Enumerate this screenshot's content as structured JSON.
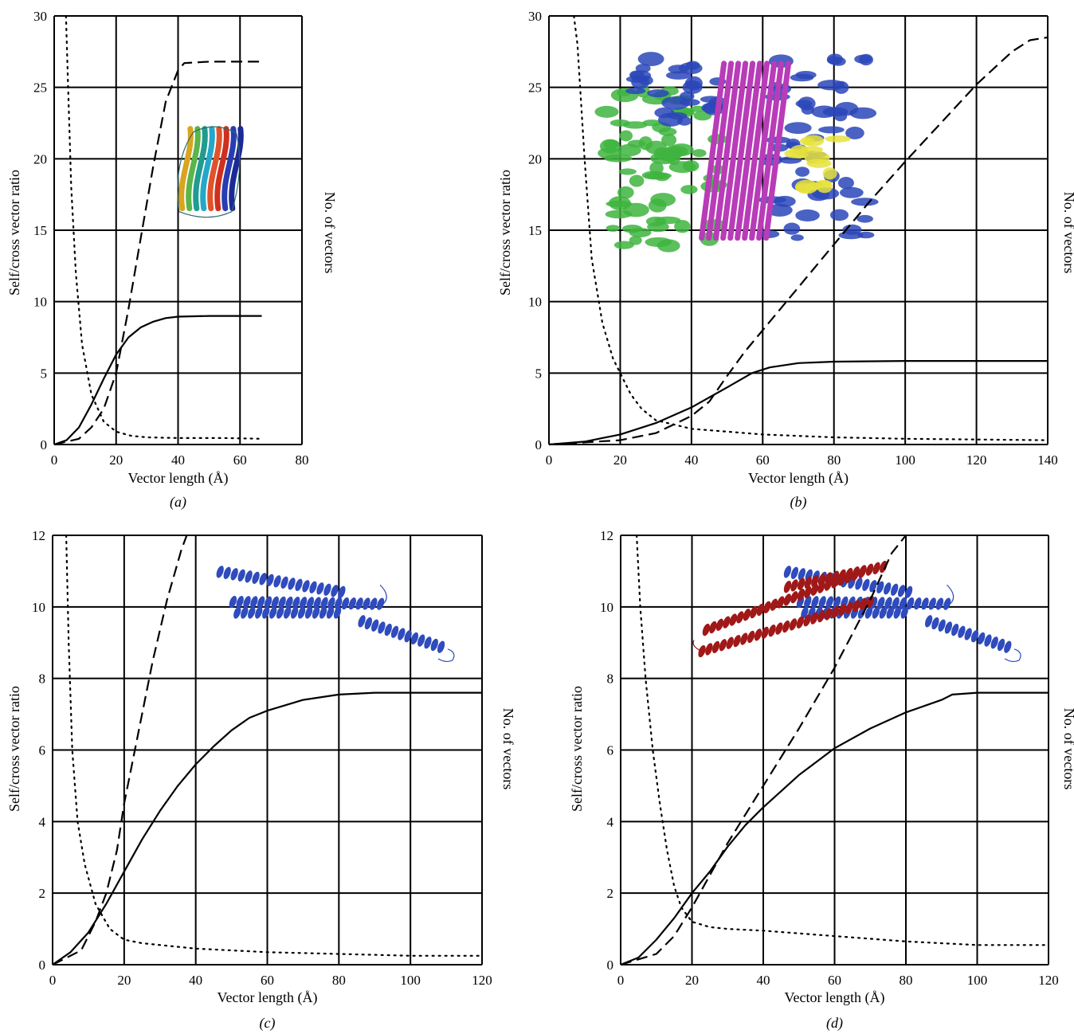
{
  "chart_data": [
    {
      "type": "line",
      "panel_label": "(a)",
      "xlabel": "Vector length (Å)",
      "ylabel": "Self/cross vector ratio",
      "y2label": "No. of vectors",
      "xlim": [
        0,
        80
      ],
      "ylim": [
        0,
        30
      ],
      "xticks": [
        0,
        20,
        40,
        60,
        80
      ],
      "yticks": [
        0,
        5,
        10,
        15,
        20,
        25,
        30
      ],
      "grid": true,
      "inset": "beta-sandwich",
      "series": [
        {
          "style": "solid",
          "points": [
            [
              0,
              0
            ],
            [
              4,
              0.3
            ],
            [
              8,
              1.2
            ],
            [
              12,
              2.8
            ],
            [
              16,
              4.6
            ],
            [
              20,
              6.3
            ],
            [
              24,
              7.5
            ],
            [
              28,
              8.2
            ],
            [
              32,
              8.6
            ],
            [
              36,
              8.85
            ],
            [
              40,
              8.95
            ],
            [
              50,
              9.0
            ],
            [
              67,
              9.0
            ]
          ]
        },
        {
          "style": "dashed",
          "points": [
            [
              0,
              0
            ],
            [
              8,
              0.4
            ],
            [
              12,
              1.2
            ],
            [
              16,
              2.5
            ],
            [
              20,
              5.0
            ],
            [
              24,
              9.5
            ],
            [
              28,
              14.5
            ],
            [
              32,
              19.5
            ],
            [
              36,
              24.0
            ],
            [
              40,
              26.2
            ],
            [
              42,
              26.7
            ],
            [
              50,
              26.8
            ],
            [
              67,
              26.8
            ]
          ]
        },
        {
          "style": "dotted",
          "points": [
            [
              3.8,
              30
            ],
            [
              4.5,
              25
            ],
            [
              5.5,
              18
            ],
            [
              7,
              12
            ],
            [
              9,
              7
            ],
            [
              12,
              3.5
            ],
            [
              16,
              1.6
            ],
            [
              20,
              0.9
            ],
            [
              25,
              0.6
            ],
            [
              30,
              0.5
            ],
            [
              40,
              0.45
            ],
            [
              55,
              0.45
            ],
            [
              67,
              0.4
            ]
          ]
        }
      ]
    },
    {
      "type": "line",
      "panel_label": "(b)",
      "xlabel": "Vector length (Å)",
      "ylabel": "Self/cross vector ratio",
      "y2label": "No. of vectors",
      "xlim": [
        0,
        140
      ],
      "ylim": [
        0,
        30
      ],
      "xticks": [
        0,
        20,
        40,
        60,
        80,
        100,
        120,
        140
      ],
      "yticks": [
        0,
        5,
        10,
        15,
        20,
        25,
        30
      ],
      "grid": true,
      "inset": "multi-domain-complex",
      "series": [
        {
          "style": "solid",
          "points": [
            [
              0,
              0
            ],
            [
              10,
              0.2
            ],
            [
              20,
              0.7
            ],
            [
              30,
              1.5
            ],
            [
              40,
              2.6
            ],
            [
              50,
              4.0
            ],
            [
              57,
              5.0
            ],
            [
              62,
              5.4
            ],
            [
              70,
              5.7
            ],
            [
              80,
              5.8
            ],
            [
              100,
              5.85
            ],
            [
              140,
              5.85
            ]
          ]
        },
        {
          "style": "dashed",
          "points": [
            [
              0,
              0
            ],
            [
              20,
              0.3
            ],
            [
              30,
              0.8
            ],
            [
              40,
              2.0
            ],
            [
              45,
              3.0
            ],
            [
              50,
              4.8
            ],
            [
              55,
              6.5
            ],
            [
              60,
              8.0
            ],
            [
              70,
              11.0
            ],
            [
              80,
              14.0
            ],
            [
              90,
              17.0
            ],
            [
              100,
              19.8
            ],
            [
              110,
              22.5
            ],
            [
              120,
              25.2
            ],
            [
              130,
              27.5
            ],
            [
              135,
              28.3
            ],
            [
              140,
              28.5
            ]
          ]
        },
        {
          "style": "dotted",
          "points": [
            [
              7,
              30
            ],
            [
              8,
              28
            ],
            [
              10,
              20
            ],
            [
              12,
              13
            ],
            [
              15,
              8.5
            ],
            [
              18,
              6
            ],
            [
              20,
              5
            ],
            [
              23,
              3.5
            ],
            [
              26,
              2.5
            ],
            [
              30,
              1.7
            ],
            [
              40,
              1.1
            ],
            [
              60,
              0.7
            ],
            [
              80,
              0.5
            ],
            [
              100,
              0.4
            ],
            [
              140,
              0.3
            ]
          ]
        }
      ]
    },
    {
      "type": "line",
      "panel_label": "(c)",
      "xlabel": "Vector length (Å)",
      "ylabel": "Self/cross vector ratio",
      "y2label": "No. of vectors",
      "xlim": [
        0,
        120
      ],
      "ylim": [
        0,
        12
      ],
      "xticks": [
        0,
        20,
        40,
        60,
        80,
        100,
        120
      ],
      "yticks": [
        0,
        2,
        4,
        6,
        8,
        10,
        12
      ],
      "grid": true,
      "inset": "helix-dimer-blue",
      "series": [
        {
          "style": "solid",
          "points": [
            [
              0,
              0
            ],
            [
              5,
              0.35
            ],
            [
              10,
              0.9
            ],
            [
              15,
              1.7
            ],
            [
              20,
              2.6
            ],
            [
              25,
              3.5
            ],
            [
              30,
              4.3
            ],
            [
              35,
              5.0
            ],
            [
              40,
              5.6
            ],
            [
              45,
              6.1
            ],
            [
              50,
              6.55
            ],
            [
              55,
              6.9
            ],
            [
              60,
              7.1
            ],
            [
              70,
              7.4
            ],
            [
              80,
              7.55
            ],
            [
              90,
              7.6
            ],
            [
              120,
              7.6
            ]
          ]
        },
        {
          "style": "dashed",
          "points": [
            [
              0,
              0
            ],
            [
              8,
              0.4
            ],
            [
              12,
              1.2
            ],
            [
              15,
              2.0
            ],
            [
              18,
              3.2
            ],
            [
              20,
              4.5
            ],
            [
              24,
              6.5
            ],
            [
              28,
              8.5
            ],
            [
              32,
              10.2
            ],
            [
              36,
              11.6
            ],
            [
              37.5,
              12
            ]
          ]
        },
        {
          "style": "dotted",
          "points": [
            [
              3.8,
              12
            ],
            [
              4.5,
              9
            ],
            [
              5.5,
              6
            ],
            [
              7,
              4
            ],
            [
              9,
              2.8
            ],
            [
              12,
              1.7
            ],
            [
              16,
              1.0
            ],
            [
              20,
              0.7
            ],
            [
              25,
              0.6
            ],
            [
              30,
              0.55
            ],
            [
              40,
              0.45
            ],
            [
              60,
              0.35
            ],
            [
              80,
              0.3
            ],
            [
              100,
              0.25
            ],
            [
              120,
              0.25
            ]
          ]
        }
      ]
    },
    {
      "type": "line",
      "panel_label": "(d)",
      "xlabel": "Vector length (Å)",
      "ylabel": "Self/cross vector ratio",
      "y2label": "No. of vectors",
      "xlim": [
        0,
        120
      ],
      "ylim": [
        0,
        12
      ],
      "xticks": [
        0,
        20,
        40,
        60,
        80,
        100,
        120
      ],
      "yticks": [
        0,
        2,
        4,
        6,
        8,
        10,
        12
      ],
      "grid": true,
      "inset": "helix-dimer-red-blue",
      "series": [
        {
          "style": "solid",
          "points": [
            [
              0,
              0
            ],
            [
              5,
              0.2
            ],
            [
              10,
              0.7
            ],
            [
              15,
              1.3
            ],
            [
              20,
              2.0
            ],
            [
              25,
              2.6
            ],
            [
              30,
              3.3
            ],
            [
              35,
              3.9
            ],
            [
              40,
              4.4
            ],
            [
              50,
              5.3
            ],
            [
              60,
              6.05
            ],
            [
              70,
              6.6
            ],
            [
              80,
              7.05
            ],
            [
              90,
              7.4
            ],
            [
              93,
              7.55
            ],
            [
              100,
              7.6
            ],
            [
              120,
              7.6
            ]
          ]
        },
        {
          "style": "dashed",
          "points": [
            [
              0,
              0
            ],
            [
              10,
              0.3
            ],
            [
              15,
              0.8
            ],
            [
              20,
              1.6
            ],
            [
              25,
              2.5
            ],
            [
              30,
              3.4
            ],
            [
              40,
              5.0
            ],
            [
              50,
              6.6
            ],
            [
              60,
              8.3
            ],
            [
              70,
              10.2
            ],
            [
              76,
              11.5
            ],
            [
              80,
              12
            ]
          ]
        },
        {
          "style": "dotted",
          "points": [
            [
              4.5,
              12
            ],
            [
              5.5,
              10
            ],
            [
              7,
              8
            ],
            [
              9,
              6
            ],
            [
              11,
              4.5
            ],
            [
              13,
              3.2
            ],
            [
              15,
              2.2
            ],
            [
              17,
              1.6
            ],
            [
              20,
              1.2
            ],
            [
              25,
              1.05
            ],
            [
              30,
              1.0
            ],
            [
              40,
              0.95
            ],
            [
              60,
              0.8
            ],
            [
              80,
              0.65
            ],
            [
              100,
              0.55
            ],
            [
              120,
              0.55
            ]
          ]
        }
      ]
    }
  ]
}
